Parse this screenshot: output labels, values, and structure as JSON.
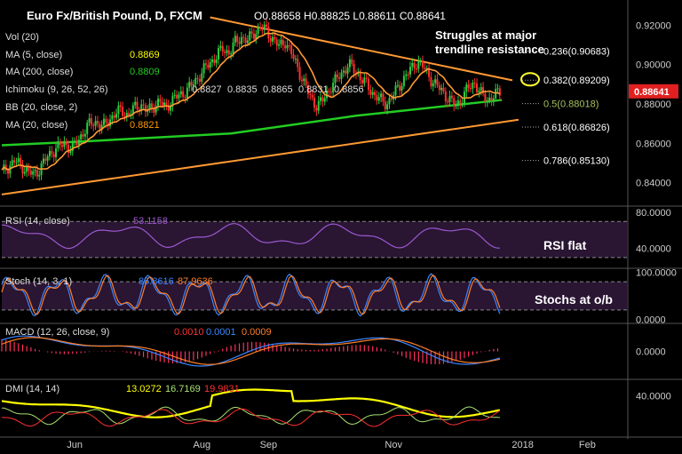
{
  "header": {
    "symbol": "Euro Fx/British Pound, D, FXCM",
    "ohlc": "O0.88658  H0.88825  L0.88611  C0.88641"
  },
  "indicators": {
    "vol": "Vol (20)",
    "ma5": {
      "label": "MA (5, close)",
      "value": "0.8869",
      "color": "#ffff00"
    },
    "ma200": {
      "label": "MA (200, close)",
      "value": "0.8809",
      "color": "#22cc22"
    },
    "ichimoku": {
      "label": "Ichimoku (9, 26, 52, 26)",
      "values": [
        "0.8827",
        "0.8835",
        "0.8865",
        "0.8831",
        "0.8856"
      ]
    },
    "bb": {
      "label": "BB (20, close, 2)"
    },
    "ma20": {
      "label": "MA (20, close)",
      "value": "0.8821",
      "color": "#ff9900"
    }
  },
  "annotations": {
    "trendline_note": [
      "Struggles at major",
      "trendline resistance"
    ],
    "rsi_note": "RSI flat",
    "stoch_note": "Stochs at o/b"
  },
  "fib_levels": [
    {
      "label": "0.236(0.90683)",
      "value": 0.90683
    },
    {
      "label": "0.382(0.89209)",
      "value": 0.89209
    },
    {
      "label": "0.5(0.88018)",
      "value": 0.88018,
      "color": "#a8c060"
    },
    {
      "label": "0.618(0.86826)",
      "value": 0.86826
    },
    {
      "label": "0.786(0.85130)",
      "value": 0.8513
    }
  ],
  "price_axis": {
    "ticks": [
      0.92,
      0.9,
      0.88,
      0.86,
      0.84
    ],
    "tick_labels": [
      "0.92000",
      "0.90000",
      "0.88000",
      "0.86000",
      "0.84000"
    ],
    "current": "0.88641",
    "current_value": 0.88641,
    "range": [
      0.829,
      0.931
    ]
  },
  "rsi_panel": {
    "label": "RSI (14, close)",
    "value": "53.1158",
    "tick_labels": [
      "80.0000",
      "40.0000"
    ],
    "ticks": [
      80,
      40
    ],
    "range": [
      20,
      85
    ],
    "bands": [
      70,
      30
    ]
  },
  "stoch_panel": {
    "label": "Stoch (14, 3, 1)",
    "k": "85.8616",
    "d": "87.9636",
    "tick_labels": [
      "100.0000",
      "0.0000"
    ],
    "ticks": [
      100,
      0
    ],
    "range": [
      -5,
      105
    ],
    "bands": [
      80,
      20
    ]
  },
  "macd_panel": {
    "label": "MACD (12, 26, close, 9)",
    "hist": "0.0010",
    "macd": "0.0001",
    "signal": "0.0009",
    "tick_labels": [
      "0.0000"
    ],
    "ticks": [
      0
    ],
    "range": [
      -0.008,
      0.008
    ]
  },
  "dmi_panel": {
    "label": "DMI (14, 14)",
    "adx": "13.0272",
    "plus_di": "16.7169",
    "minus_di": "19.9831",
    "tick_labels": [
      "40.0000"
    ],
    "ticks": [
      40
    ],
    "range": [
      0,
      55
    ]
  },
  "time_axis": {
    "labels": [
      {
        "text": "Jun",
        "day": 35
      },
      {
        "text": "Aug",
        "day": 96
      },
      {
        "text": "Sep",
        "day": 128
      },
      {
        "text": "Nov",
        "day": 188
      },
      {
        "text": "2018",
        "day": 250
      },
      {
        "text": "Feb",
        "day": 281
      }
    ],
    "x_range": [
      0,
      300
    ]
  },
  "chart_data": {
    "type": "candlestick",
    "title": "Euro Fx/British Pound, D, FXCM",
    "price_closes": [
      0.845,
      0.848,
      0.851,
      0.849,
      0.846,
      0.844,
      0.847,
      0.852,
      0.856,
      0.858,
      0.86,
      0.857,
      0.861,
      0.866,
      0.87,
      0.871,
      0.868,
      0.872,
      0.875,
      0.877,
      0.874,
      0.878,
      0.88,
      0.876,
      0.879,
      0.881,
      0.878,
      0.882,
      0.884,
      0.886,
      0.889,
      0.893,
      0.897,
      0.901,
      0.904,
      0.908,
      0.906,
      0.911,
      0.914,
      0.912,
      0.916,
      0.919,
      0.917,
      0.913,
      0.909,
      0.912,
      0.905,
      0.898,
      0.89,
      0.883,
      0.879,
      0.882,
      0.888,
      0.892,
      0.896,
      0.9,
      0.897,
      0.893,
      0.889,
      0.885,
      0.882,
      0.88,
      0.884,
      0.889,
      0.894,
      0.898,
      0.902,
      0.898,
      0.893,
      0.889,
      0.886,
      0.882,
      0.879,
      0.883,
      0.888,
      0.891,
      0.885,
      0.882,
      0.884,
      0.886
    ],
    "ma200_values": [
      0.861,
      0.882
    ],
    "trendlines": {
      "resistance": {
        "from_price": 0.924,
        "to_price": 0.892
      },
      "support": {
        "from_price": 0.834,
        "to_price": 0.872
      }
    }
  }
}
